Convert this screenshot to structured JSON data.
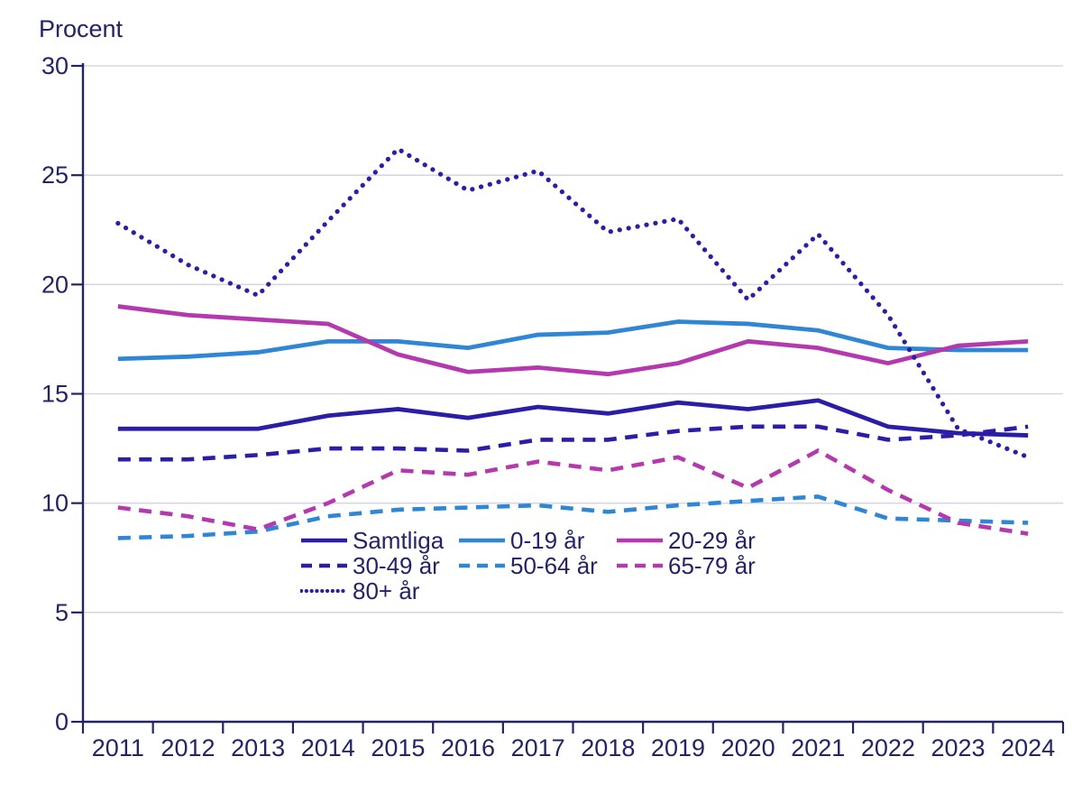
{
  "colors": {
    "axis": "#232366",
    "text": "#232366",
    "grid": "#d7d7e3",
    "navy": "#2a1da6",
    "blue": "#2e86d4",
    "magenta": "#b438ae",
    "background": "#ffffff"
  },
  "chart_data": {
    "type": "line",
    "title": "",
    "ylabel": "Procent",
    "xlabel": "",
    "ylim": [
      0,
      30
    ],
    "ytick_step": 5,
    "yticks": [
      0,
      5,
      10,
      15,
      20,
      25,
      30
    ],
    "grid": true,
    "legend_position": "inside-bottom-left",
    "x": [
      2011,
      2012,
      2013,
      2014,
      2015,
      2016,
      2017,
      2018,
      2019,
      2020,
      2021,
      2022,
      2023,
      2024
    ],
    "series": [
      {
        "name": "Samtliga",
        "style": "solid",
        "color": "#2a1da6",
        "values": [
          13.4,
          13.4,
          13.4,
          14.0,
          14.3,
          13.9,
          14.4,
          14.1,
          14.6,
          14.3,
          14.7,
          13.5,
          13.2,
          13.1
        ]
      },
      {
        "name": "0-19 år",
        "style": "solid",
        "color": "#2e86d4",
        "values": [
          16.6,
          16.7,
          16.9,
          17.4,
          17.4,
          17.1,
          17.7,
          17.8,
          18.3,
          18.2,
          17.9,
          17.1,
          17.0,
          17.0
        ]
      },
      {
        "name": "20-29 år",
        "style": "solid",
        "color": "#b438ae",
        "values": [
          19.0,
          18.6,
          18.4,
          18.2,
          16.8,
          16.0,
          16.2,
          15.9,
          16.4,
          17.4,
          17.1,
          16.4,
          17.2,
          17.4
        ]
      },
      {
        "name": "30-49 år",
        "style": "dashed",
        "color": "#2a1da6",
        "values": [
          12.0,
          12.0,
          12.2,
          12.5,
          12.5,
          12.4,
          12.9,
          12.9,
          13.3,
          13.5,
          13.5,
          12.9,
          13.1,
          13.5
        ]
      },
      {
        "name": "50-64 år",
        "style": "dashed",
        "color": "#2e86d4",
        "values": [
          8.4,
          8.5,
          8.7,
          9.4,
          9.7,
          9.8,
          9.9,
          9.6,
          9.9,
          10.1,
          10.3,
          9.3,
          9.2,
          9.1
        ]
      },
      {
        "name": "65-79 år",
        "style": "dashed",
        "color": "#b438ae",
        "values": [
          9.8,
          9.4,
          8.8,
          10.0,
          11.5,
          11.3,
          11.9,
          11.5,
          12.1,
          10.7,
          12.4,
          10.6,
          9.1,
          8.6
        ]
      },
      {
        "name": "80+ år",
        "style": "dotted",
        "color": "#2a1da6",
        "values": [
          22.8,
          20.9,
          19.5,
          22.9,
          26.2,
          24.3,
          25.2,
          22.4,
          23.0,
          19.3,
          22.3,
          18.6,
          13.4,
          12.1
        ]
      }
    ]
  }
}
